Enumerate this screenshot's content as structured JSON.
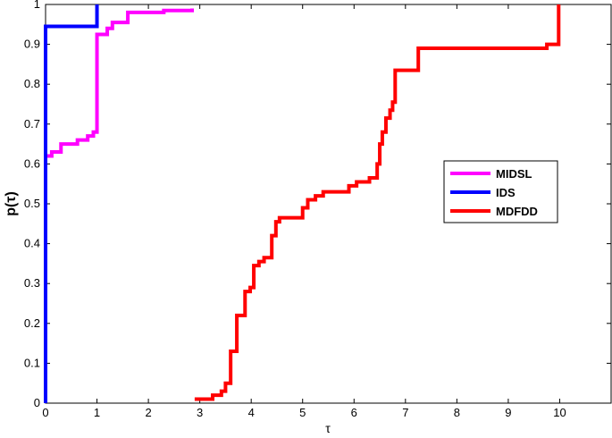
{
  "chart_data": {
    "type": "line",
    "title": "",
    "xlabel": "τ",
    "ylabel": "p(τ)",
    "xlim": [
      0,
      11
    ],
    "ylim": [
      0,
      1
    ],
    "xticks": [
      0,
      1,
      2,
      3,
      4,
      5,
      6,
      7,
      8,
      9,
      10
    ],
    "yticks": [
      0,
      0.1,
      0.2,
      0.3,
      0.4,
      0.5,
      0.6,
      0.7,
      0.8,
      0.9,
      1
    ],
    "grid": false,
    "legend_position": "right",
    "series": [
      {
        "name": "MIDSL",
        "color": "#ff00ff",
        "step": true,
        "x": [
          0,
          0.12,
          0.3,
          0.62,
          0.82,
          0.93,
          1.0,
          1.2,
          1.3,
          1.6,
          2.3,
          2.85
        ],
        "y": [
          0.62,
          0.63,
          0.65,
          0.66,
          0.67,
          0.68,
          0.925,
          0.94,
          0.955,
          0.98,
          0.985,
          0.99
        ]
      },
      {
        "name": "IDS",
        "color": "#0000ff",
        "step": true,
        "x": [
          0,
          1.0
        ],
        "y": [
          0.945,
          1.0
        ]
      },
      {
        "name": "MDFDD",
        "color": "#ff0000",
        "step": true,
        "x": [
          2.9,
          3.25,
          3.42,
          3.5,
          3.6,
          3.72,
          3.88,
          3.98,
          4.05,
          4.15,
          4.25,
          4.4,
          4.48,
          4.55,
          4.65,
          5.0,
          5.1,
          5.25,
          5.4,
          5.9,
          6.05,
          6.3,
          6.45,
          6.5,
          6.55,
          6.62,
          6.7,
          6.75,
          6.8,
          6.9,
          7.25,
          9.75,
          9.98
        ],
        "y": [
          0.01,
          0.02,
          0.03,
          0.05,
          0.13,
          0.22,
          0.28,
          0.29,
          0.345,
          0.355,
          0.365,
          0.42,
          0.455,
          0.465,
          0.465,
          0.49,
          0.51,
          0.52,
          0.53,
          0.545,
          0.555,
          0.565,
          0.6,
          0.65,
          0.68,
          0.715,
          0.735,
          0.755,
          0.835,
          0.835,
          0.89,
          0.9,
          1.0
        ]
      }
    ]
  }
}
